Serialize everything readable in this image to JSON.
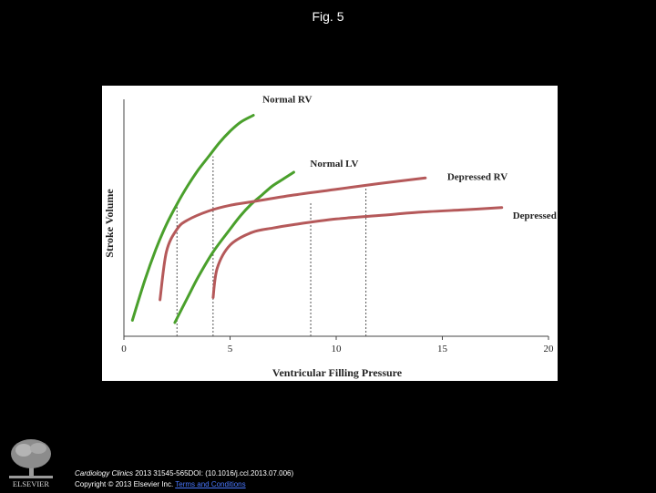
{
  "page": {
    "title": "Fig. 5"
  },
  "footer": {
    "journal": "Cardiology Clinics",
    "citation_rest": " 2013 31545-565DOI: (10.1016/j.ccl.2013.07.006)",
    "copyright": "Copyright © 2013 Elsevier Inc.",
    "link_text": "Terms and Conditions"
  },
  "logo": {
    "text": "ELSEVIER"
  },
  "colors": {
    "normal": "#4aa02c",
    "depressed": "#b5595a",
    "guide": "#555555"
  },
  "chart_data": {
    "type": "line",
    "xlabel": "Ventricular Filling Pressure",
    "ylabel": "Stroke Volume",
    "xlim": [
      0,
      20
    ],
    "xticks": [
      0,
      5,
      10,
      15,
      20
    ],
    "ylim": [
      0,
      100
    ],
    "grid": false,
    "series": [
      {
        "name": "Normal RV",
        "color": "#4aa02c",
        "x": [
          0.4,
          1,
          1.5,
          2,
          2.5,
          3,
          3.5,
          4,
          4.5,
          5,
          5.5,
          6.1
        ],
        "y": [
          7,
          25,
          38,
          49,
          58,
          66,
          73,
          79,
          85,
          90,
          94,
          97
        ]
      },
      {
        "name": "Normal LV",
        "color": "#4aa02c",
        "x": [
          2.4,
          3,
          3.5,
          4.2,
          5,
          5.5,
          6,
          6.5,
          7,
          7.5,
          8
        ],
        "y": [
          6,
          17,
          26,
          37,
          47,
          53,
          58,
          62,
          66,
          69,
          72
        ]
      },
      {
        "name": "Depressed RV",
        "color": "#b5595a",
        "x": [
          1.7,
          2,
          2.5,
          3,
          4,
          5,
          6,
          8,
          10,
          12,
          14.2
        ],
        "y": [
          16,
          37,
          47,
          51,
          55,
          57.5,
          59,
          62,
          64.5,
          67,
          69.5
        ]
      },
      {
        "name": "Depressed LV",
        "color": "#b5595a",
        "x": [
          4.2,
          4.4,
          5,
          6,
          7,
          8,
          10,
          12,
          14,
          16,
          17.8
        ],
        "y": [
          17,
          30,
          40,
          45.5,
          47.5,
          49,
          51.5,
          53,
          54.5,
          55.5,
          56.5
        ]
      }
    ],
    "guides": [
      {
        "x": 2.5,
        "y": 58
      },
      {
        "x": 4.2,
        "y": 79
      },
      {
        "x": 8.8,
        "y": 59
      },
      {
        "x": 11.4,
        "y": 65
      }
    ]
  }
}
